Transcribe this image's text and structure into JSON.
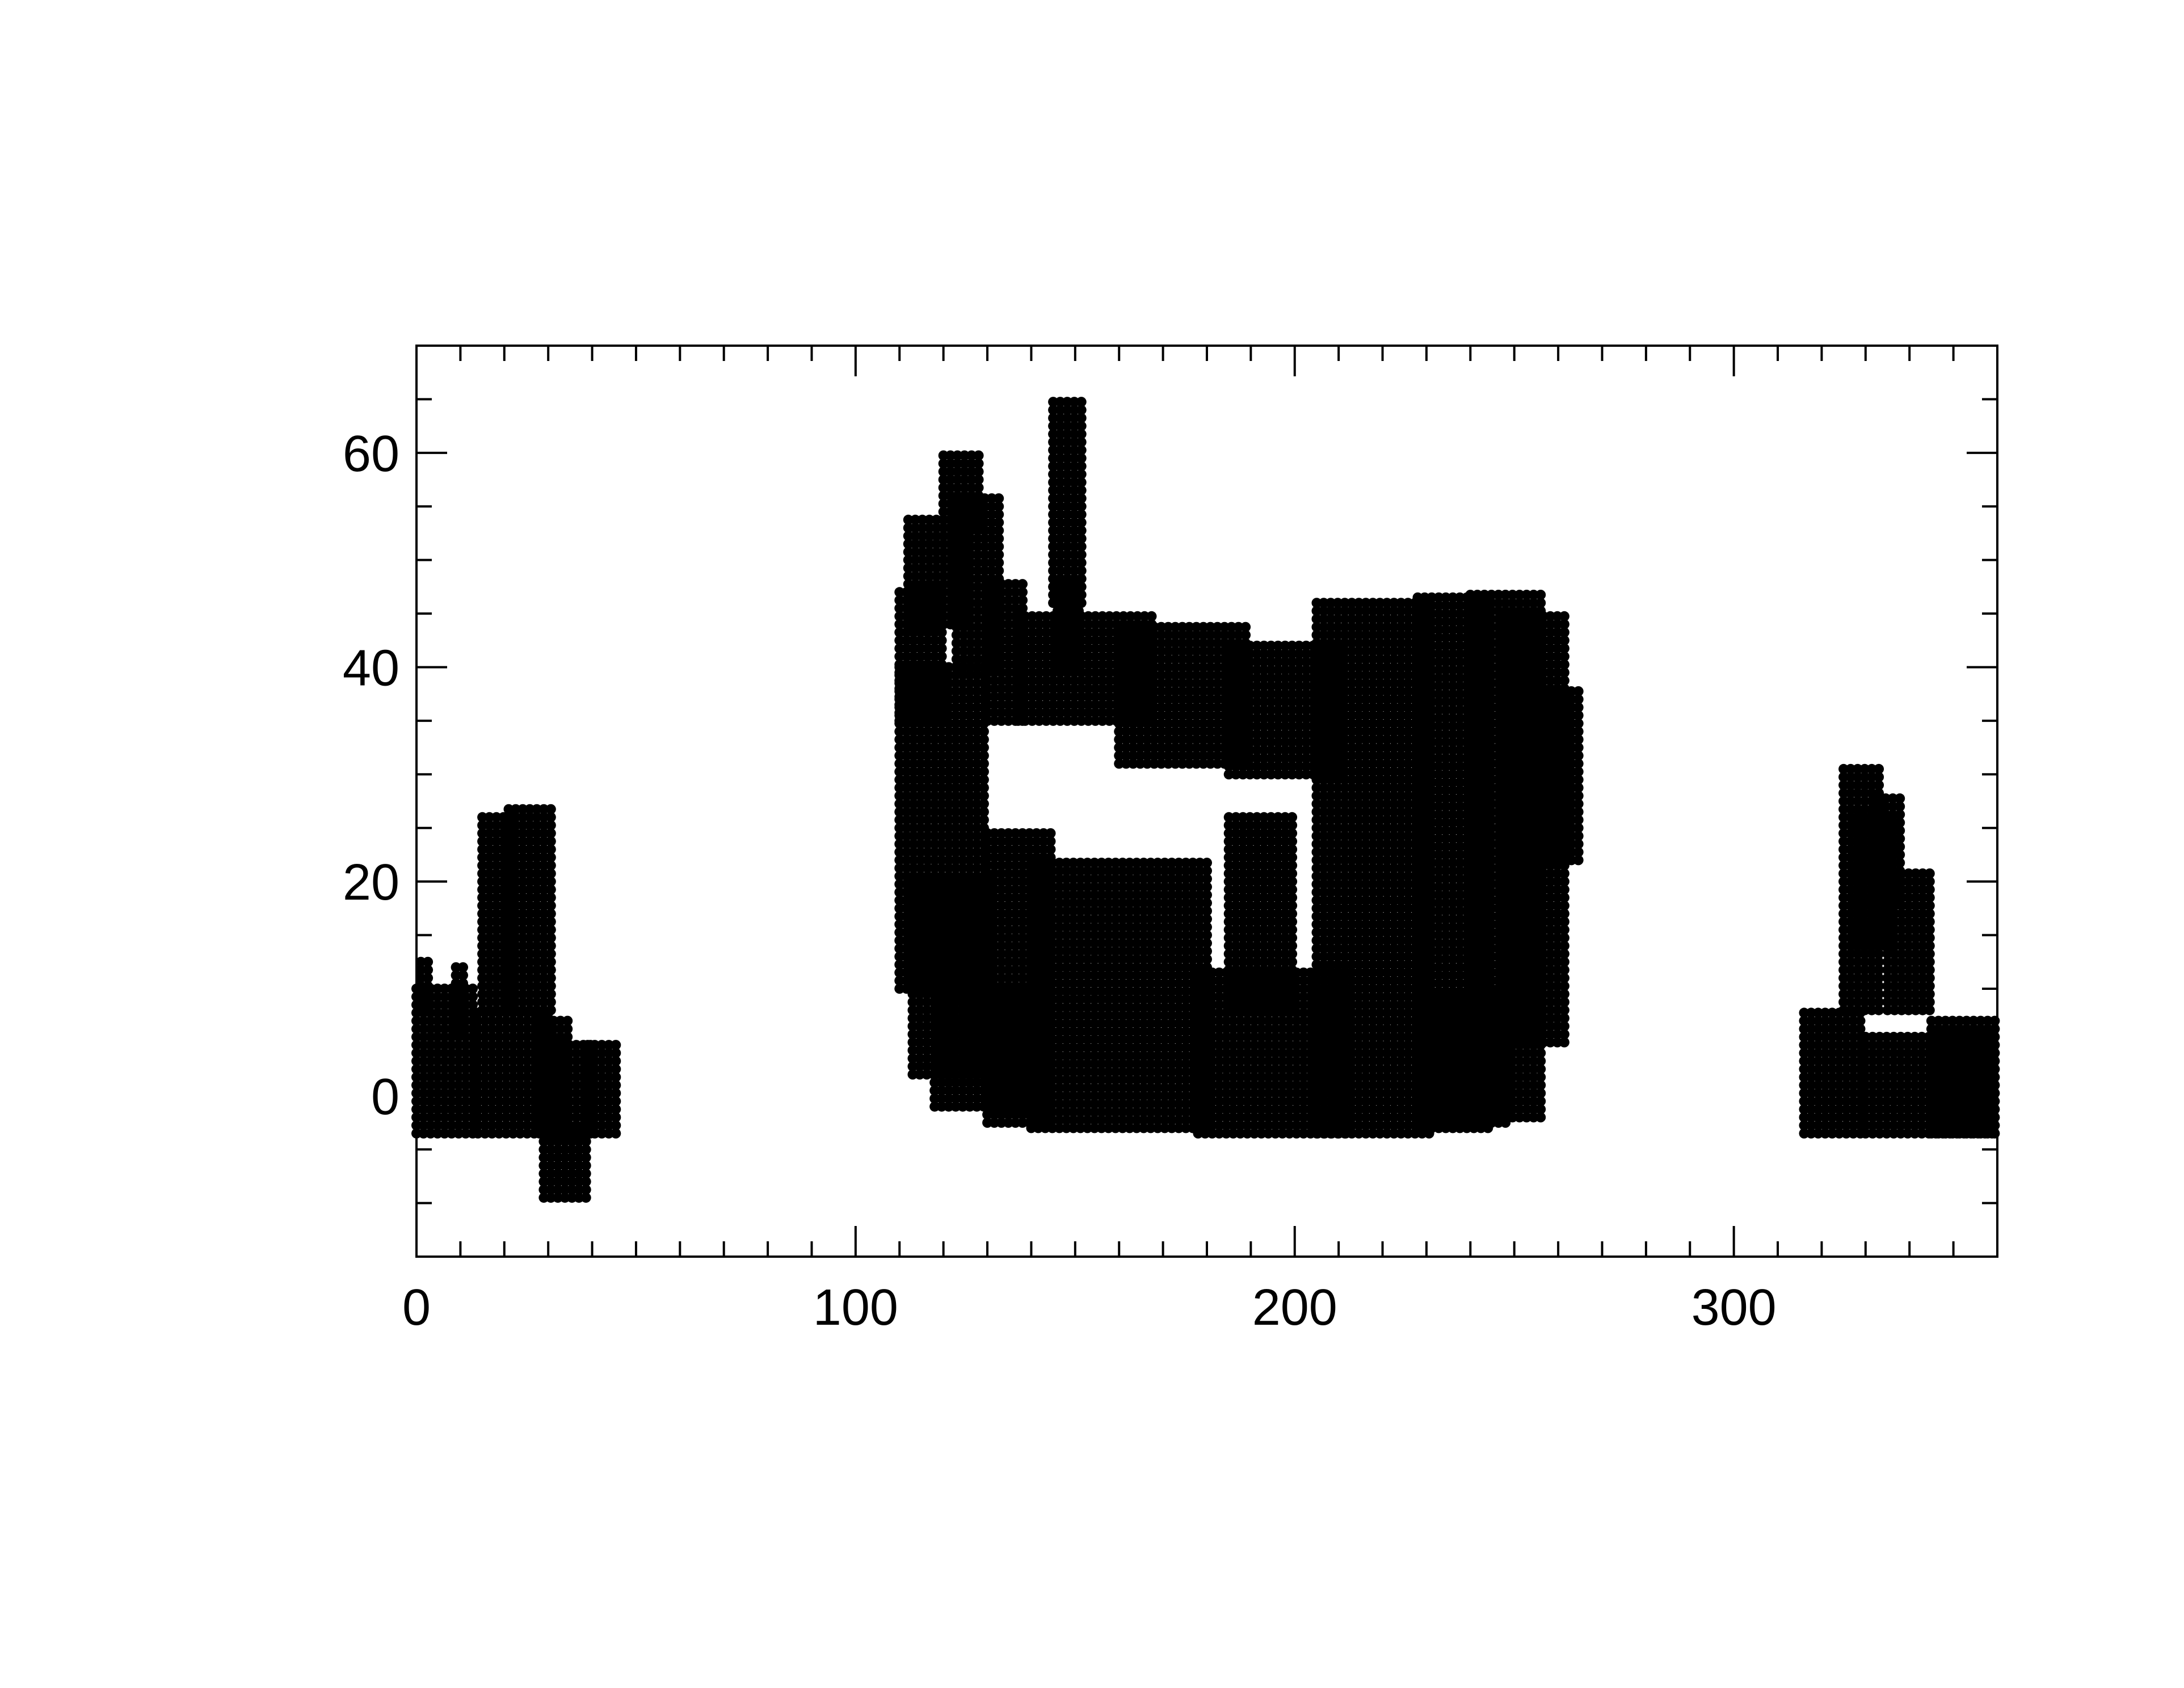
{
  "chart_data": {
    "type": "scatter",
    "title": "",
    "xlabel": "",
    "ylabel": "",
    "xlim": [
      0,
      360
    ],
    "ylim": [
      -15,
      70
    ],
    "x_ticks": [
      0,
      100,
      200,
      300
    ],
    "x_tick_labels": [
      "0",
      "100",
      "200",
      "300"
    ],
    "x_minor_step": 10,
    "y_ticks": [
      0,
      20,
      40,
      60
    ],
    "y_tick_labels": [
      "0",
      "20",
      "40",
      "60"
    ],
    "y_minor_step": 5,
    "grid": false,
    "legend": "none",
    "marker_color": "#000000",
    "series": [
      {
        "regions": [
          {
            "x": [
              0,
              14
            ],
            "y": [
              -3.5,
              10
            ]
          },
          {
            "x": [
              1,
              4
            ],
            "y": [
              8,
              13
            ]
          },
          {
            "x": [
              9,
              12
            ],
            "y": [
              6,
              12
            ]
          },
          {
            "x": [
              14,
              31
            ],
            "y": [
              -3.5,
              8
            ]
          },
          {
            "x": [
              15,
              22
            ],
            "y": [
              8,
              26
            ]
          },
          {
            "x": [
              21,
              31
            ],
            "y": [
              8,
              27
            ]
          },
          {
            "x": [
              28,
              35
            ],
            "y": [
              -3.5,
              7.5
            ]
          },
          {
            "x": [
              30,
              41
            ],
            "y": [
              -3.5,
              5
            ]
          },
          {
            "x": [
              39,
              46
            ],
            "y": [
              -3.5,
              5
            ]
          },
          {
            "x": [
              29,
              40
            ],
            "y": [
              -9.5,
              -3.5
            ]
          },
          {
            "x": [
              110,
              121
            ],
            "y": [
              35,
              47
            ]
          },
          {
            "x": [
              112,
              125
            ],
            "y": [
              44,
              54
            ]
          },
          {
            "x": [
              120,
              128
            ],
            "y": [
              53,
              60
            ]
          },
          {
            "x": [
              123,
              133
            ],
            "y": [
              40,
              56
            ]
          },
          {
            "x": [
              130,
              138
            ],
            "y": [
              35,
              48
            ]
          },
          {
            "x": [
              110,
              130
            ],
            "y": [
              10,
              40
            ]
          },
          {
            "x": [
              113,
              132
            ],
            "y": [
              2,
              20
            ]
          },
          {
            "x": [
              118,
              140
            ],
            "y": [
              -1,
              10
            ]
          },
          {
            "x": [
              130,
              145
            ],
            "y": [
              -2.5,
              25
            ]
          },
          {
            "x": [
              140,
              180
            ],
            "y": [
              -3,
              22
            ]
          },
          {
            "x": [
              178,
              212
            ],
            "y": [
              -3.5,
              12
            ]
          },
          {
            "x": [
              185,
              200
            ],
            "y": [
              8,
              26
            ]
          },
          {
            "x": [
              145,
              152
            ],
            "y": [
              46,
              65
            ]
          },
          {
            "x": [
              146,
              152
            ],
            "y": [
              40,
              48
            ]
          },
          {
            "x": [
              137,
              168
            ],
            "y": [
              35,
              45
            ]
          },
          {
            "x": [
              160,
              190
            ],
            "y": [
              31,
              44
            ]
          },
          {
            "x": [
              185,
              212
            ],
            "y": [
              30,
              42
            ]
          },
          {
            "x": [
              205,
              232
            ],
            "y": [
              -3.5,
              46
            ]
          },
          {
            "x": [
              228,
              245
            ],
            "y": [
              -3,
              47
            ]
          },
          {
            "x": [
              240,
              256
            ],
            "y": [
              -2,
              47
            ]
          },
          {
            "x": [
              247,
              262
            ],
            "y": [
              5,
              45
            ]
          },
          {
            "x": [
              255,
              265
            ],
            "y": [
              22,
              38
            ]
          },
          {
            "x": [
              232,
              248
            ],
            "y": [
              -2.5,
              10
            ]
          },
          {
            "x": [
              316,
              330
            ],
            "y": [
              -3.5,
              8
            ]
          },
          {
            "x": [
              325,
              333
            ],
            "y": [
              8,
              31
            ]
          },
          {
            "x": [
              328,
              336
            ],
            "y": [
              14,
              26
            ]
          },
          {
            "x": [
              333,
              339
            ],
            "y": [
              18,
              28
            ]
          },
          {
            "x": [
              335,
              346
            ],
            "y": [
              8,
              21
            ]
          },
          {
            "x": [
              330,
              360
            ],
            "y": [
              -3.5,
              6
            ]
          },
          {
            "x": [
              345,
              360
            ],
            "y": [
              -3.5,
              7.5
            ]
          }
        ]
      }
    ]
  }
}
